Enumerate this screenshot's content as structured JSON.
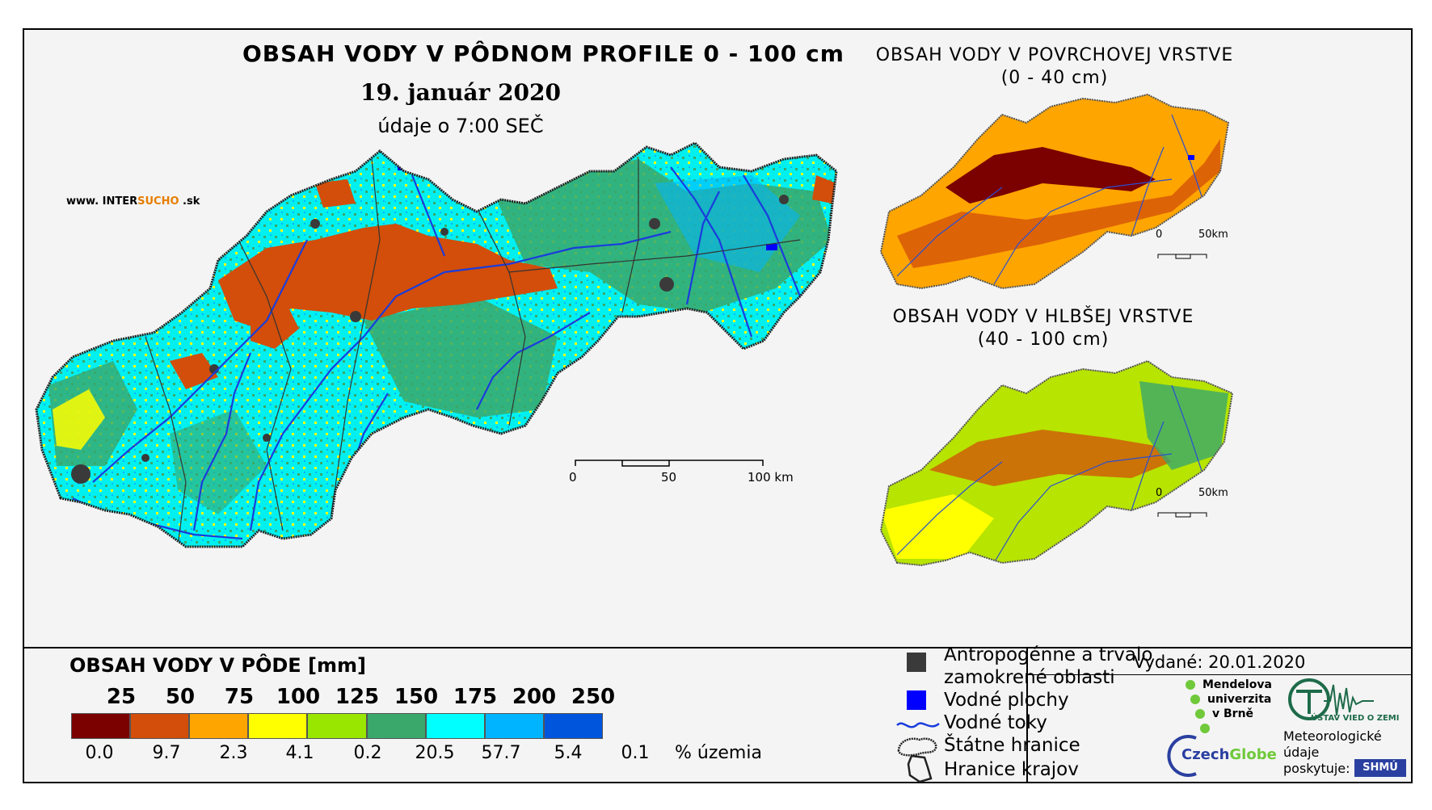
{
  "main": {
    "title": "OBSAH VODY V PÔDNOM PROFILE 0 - 100 cm",
    "date": "19. január 2020",
    "observation": "údaje o 7:00 SEČ",
    "site_prefix": "www. INTER",
    "site_brand": "SUCHO",
    "site_suffix": " .sk",
    "scale": [
      "0",
      "50",
      "100 km"
    ]
  },
  "top_map": {
    "title_line1": "OBSAH VODY V POVRCHOVEJ VRSTVE",
    "title_line2": "(0 - 40 cm)",
    "scale": [
      "0",
      "50km"
    ]
  },
  "bottom_map": {
    "title_line1": "OBSAH VODY V HLBŠEJ VRSTVE",
    "title_line2": "(40 - 100 cm)",
    "scale": [
      "0",
      "50km"
    ]
  },
  "legend": {
    "title": "OBSAH VODY V PÔDE [mm]",
    "thresholds": [
      "25",
      "50",
      "75",
      "100",
      "125",
      "150",
      "175",
      "200",
      "250"
    ],
    "classes": [
      {
        "color": "#7b0000",
        "percent": "0.0"
      },
      {
        "color": "#d24e0a",
        "percent": "9.7"
      },
      {
        "color": "#ffa500",
        "percent": "2.3"
      },
      {
        "color": "#ffff00",
        "percent": "4.1"
      },
      {
        "color": "#99e600",
        "percent": "0.2"
      },
      {
        "color": "#3aa86b",
        "percent": "20.5"
      },
      {
        "color": "#00ffff",
        "percent": "57.7"
      },
      {
        "color": "#00b4ff",
        "percent": "5.4"
      },
      {
        "color": "#0055dd",
        "percent": "0.1"
      }
    ],
    "percent_unit": "% územia"
  },
  "symbols": {
    "anthropogenic_line1": "Antropogénne a trvalo",
    "anthropogenic_line2": "zamokrené oblasti",
    "water_bodies": "Vodné plochy",
    "rivers": "Vodné toky",
    "state_border": "Štátne hranice",
    "region_border": "Hranice krajov"
  },
  "credits": {
    "issued": "Vydané: 20.01.2020",
    "mendel_line1": "Mendelova",
    "mendel_line2": "univerzita",
    "mendel_line3": "v Brně",
    "ustav": "ÚSTAV VIED O ZEMI",
    "czechglobe_a": "Czech",
    "czechglobe_b": "Globe",
    "meteo_line1": "Meteorologické",
    "meteo_line2": "údaje",
    "meteo_line3": "poskytuje:",
    "shmu": "SHMÚ"
  },
  "colors": {
    "frame_bg": "#f4f4f4",
    "river": "#1a3cdc",
    "anthropogenic": "#3a3a3a",
    "water": "#0000ff",
    "mendel_green": "#6fc93a",
    "shmu_blue": "#2a3fa0"
  }
}
